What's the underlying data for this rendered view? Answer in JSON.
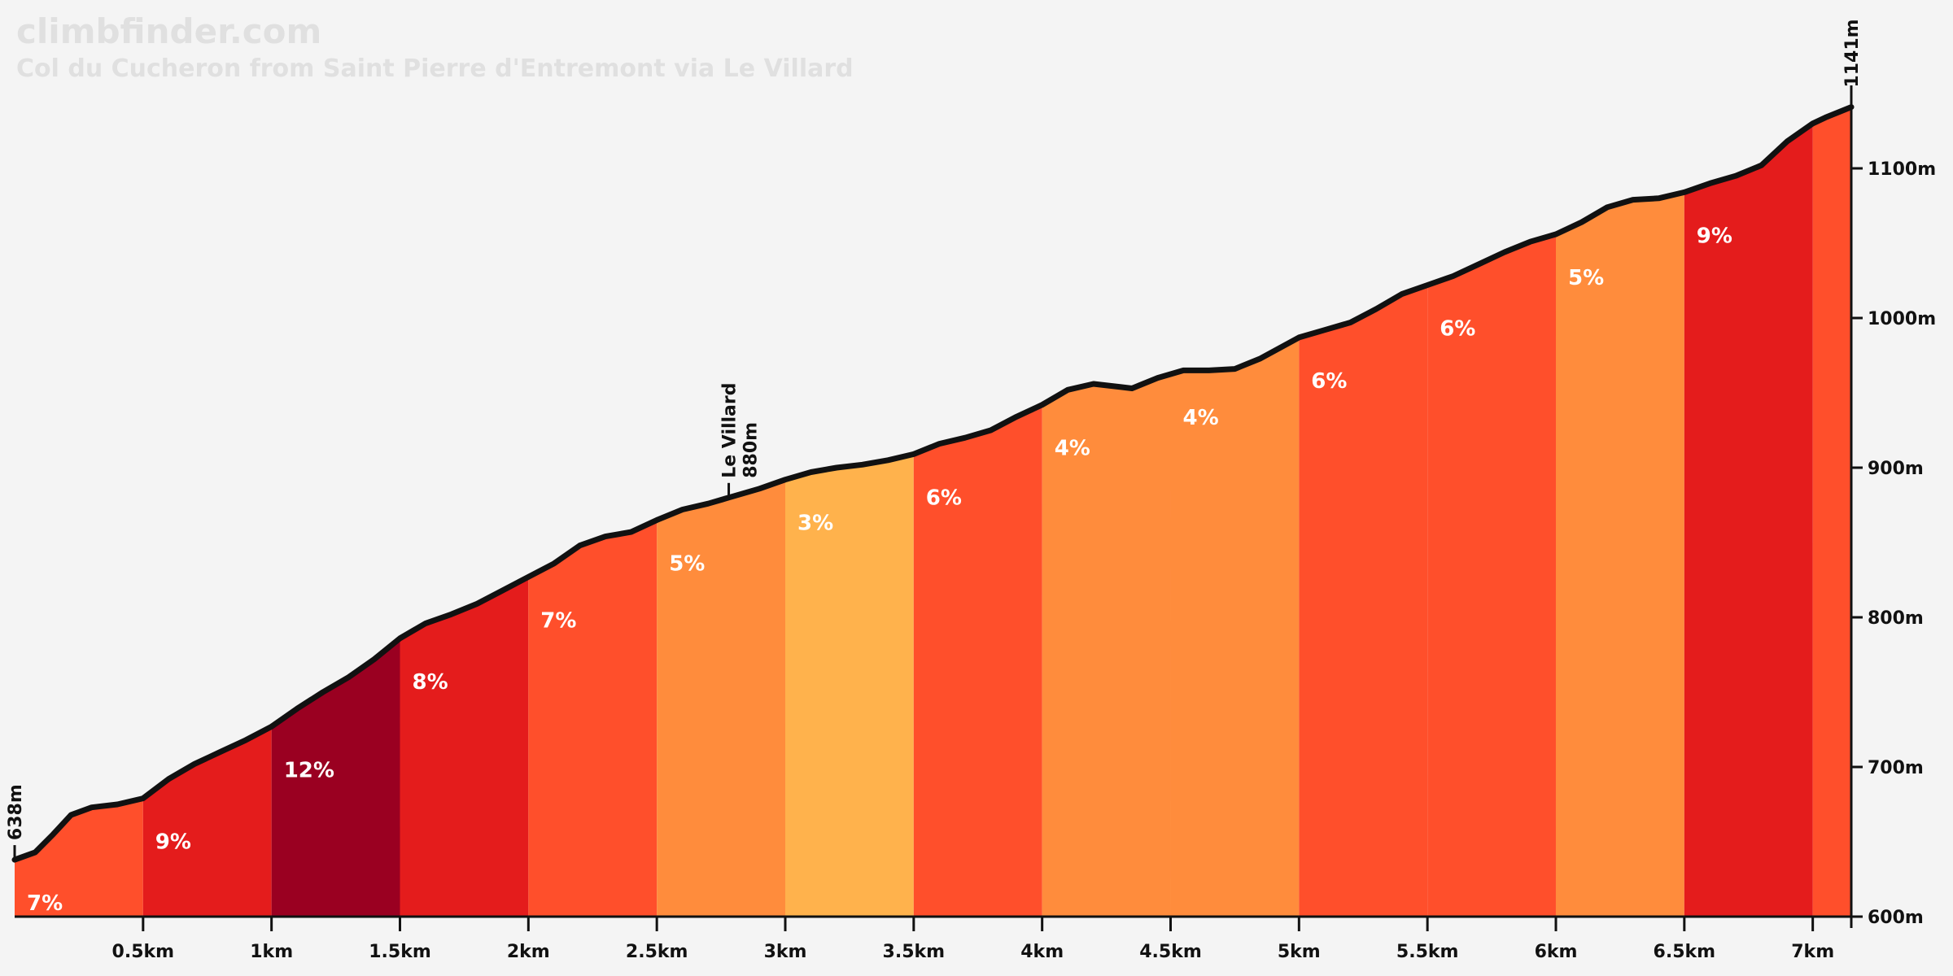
{
  "header": {
    "site": "climbfinder.com",
    "subtitle": "Col du Cucheron from Saint Pierre d'Entremont via Le Villard"
  },
  "colors": {
    "3": "#ffb24c",
    "4": "#ff8c3c",
    "5": "#ff8c3c",
    "6": "#ff4f2b",
    "7": "#ff4f2b",
    "8": "#e41c1c",
    "9": "#e41c1c",
    "12": "#9a0021",
    "line": "#111111",
    "background": "#f4f4f4"
  },
  "chart_data": {
    "type": "area",
    "title": "Col du Cucheron from Saint Pierre d'Entremont via Le Villard",
    "xlabel": "",
    "ylabel": "",
    "xlim": [
      0,
      7.15
    ],
    "ylim": [
      600,
      1150
    ],
    "x_ticks": [
      0.5,
      1,
      1.5,
      2,
      2.5,
      3,
      3.5,
      4,
      4.5,
      5,
      5.5,
      6,
      6.5,
      7
    ],
    "x_tick_labels": [
      "0.5km",
      "1km",
      "1.5km",
      "2km",
      "2.5km",
      "3km",
      "3.5km",
      "4km",
      "4.5km",
      "5km",
      "5.5km",
      "6km",
      "6.5km",
      "7km"
    ],
    "y_ticks": [
      600,
      700,
      800,
      900,
      1000,
      1100
    ],
    "y_tick_labels": [
      "600m",
      "700m",
      "800m",
      "900m",
      "1000m",
      "1100m"
    ],
    "segments": [
      {
        "start": 0.0,
        "end": 0.5,
        "gradient": 7,
        "label": "7%"
      },
      {
        "start": 0.5,
        "end": 1.0,
        "gradient": 9,
        "label": "9%"
      },
      {
        "start": 1.0,
        "end": 1.5,
        "gradient": 12,
        "label": "12%"
      },
      {
        "start": 1.5,
        "end": 2.0,
        "gradient": 8,
        "label": "8%"
      },
      {
        "start": 2.0,
        "end": 2.5,
        "gradient": 7,
        "label": "7%"
      },
      {
        "start": 2.5,
        "end": 3.0,
        "gradient": 5,
        "label": "5%"
      },
      {
        "start": 3.0,
        "end": 3.5,
        "gradient": 3,
        "label": "3%"
      },
      {
        "start": 3.5,
        "end": 4.0,
        "gradient": 6,
        "label": "6%"
      },
      {
        "start": 4.0,
        "end": 4.5,
        "gradient": 4,
        "label": "4%"
      },
      {
        "start": 4.5,
        "end": 5.0,
        "gradient": 4,
        "label": "4%"
      },
      {
        "start": 5.0,
        "end": 5.5,
        "gradient": 6,
        "label": "6%"
      },
      {
        "start": 5.5,
        "end": 6.0,
        "gradient": 6,
        "label": "6%"
      },
      {
        "start": 6.0,
        "end": 6.5,
        "gradient": 5,
        "label": "5%"
      },
      {
        "start": 6.5,
        "end": 7.0,
        "gradient": 9,
        "label": "9%"
      },
      {
        "start": 7.0,
        "end": 7.15,
        "gradient": 7,
        "label": ""
      }
    ],
    "profile": [
      [
        0.0,
        638
      ],
      [
        0.08,
        643
      ],
      [
        0.15,
        655
      ],
      [
        0.22,
        668
      ],
      [
        0.3,
        673
      ],
      [
        0.4,
        675
      ],
      [
        0.5,
        679
      ],
      [
        0.6,
        692
      ],
      [
        0.7,
        702
      ],
      [
        0.8,
        710
      ],
      [
        0.9,
        718
      ],
      [
        1.0,
        727
      ],
      [
        1.1,
        739
      ],
      [
        1.2,
        750
      ],
      [
        1.3,
        760
      ],
      [
        1.4,
        772
      ],
      [
        1.5,
        786
      ],
      [
        1.6,
        796
      ],
      [
        1.7,
        802
      ],
      [
        1.8,
        809
      ],
      [
        1.9,
        818
      ],
      [
        2.0,
        827
      ],
      [
        2.1,
        836
      ],
      [
        2.2,
        848
      ],
      [
        2.3,
        854
      ],
      [
        2.4,
        857
      ],
      [
        2.5,
        865
      ],
      [
        2.6,
        872
      ],
      [
        2.7,
        876
      ],
      [
        2.78,
        880
      ],
      [
        2.9,
        886
      ],
      [
        3.0,
        892
      ],
      [
        3.1,
        897
      ],
      [
        3.2,
        900
      ],
      [
        3.3,
        902
      ],
      [
        3.4,
        905
      ],
      [
        3.5,
        909
      ],
      [
        3.6,
        916
      ],
      [
        3.7,
        920
      ],
      [
        3.8,
        925
      ],
      [
        3.9,
        934
      ],
      [
        4.0,
        942
      ],
      [
        4.1,
        952
      ],
      [
        4.2,
        956
      ],
      [
        4.3,
        954
      ],
      [
        4.35,
        953
      ],
      [
        4.45,
        960
      ],
      [
        4.55,
        965
      ],
      [
        4.65,
        965
      ],
      [
        4.75,
        966
      ],
      [
        4.85,
        973
      ],
      [
        5.0,
        987
      ],
      [
        5.1,
        992
      ],
      [
        5.2,
        997
      ],
      [
        5.3,
        1006
      ],
      [
        5.4,
        1016
      ],
      [
        5.5,
        1022
      ],
      [
        5.6,
        1028
      ],
      [
        5.7,
        1036
      ],
      [
        5.8,
        1044
      ],
      [
        5.9,
        1051
      ],
      [
        6.0,
        1056
      ],
      [
        6.1,
        1064
      ],
      [
        6.2,
        1074
      ],
      [
        6.3,
        1079
      ],
      [
        6.4,
        1080
      ],
      [
        6.5,
        1084
      ],
      [
        6.6,
        1090
      ],
      [
        6.7,
        1095
      ],
      [
        6.8,
        1102
      ],
      [
        6.9,
        1118
      ],
      [
        7.0,
        1130
      ],
      [
        7.05,
        1134
      ],
      [
        7.15,
        1141
      ]
    ],
    "annotations": [
      {
        "x": 0.0,
        "elevation": 638,
        "lines": [
          "638m"
        ]
      },
      {
        "x": 2.78,
        "elevation": 880,
        "lines": [
          "Le Villard",
          "880m"
        ]
      },
      {
        "x": 7.15,
        "elevation": 1141,
        "lines": [
          "1141m"
        ]
      }
    ]
  }
}
